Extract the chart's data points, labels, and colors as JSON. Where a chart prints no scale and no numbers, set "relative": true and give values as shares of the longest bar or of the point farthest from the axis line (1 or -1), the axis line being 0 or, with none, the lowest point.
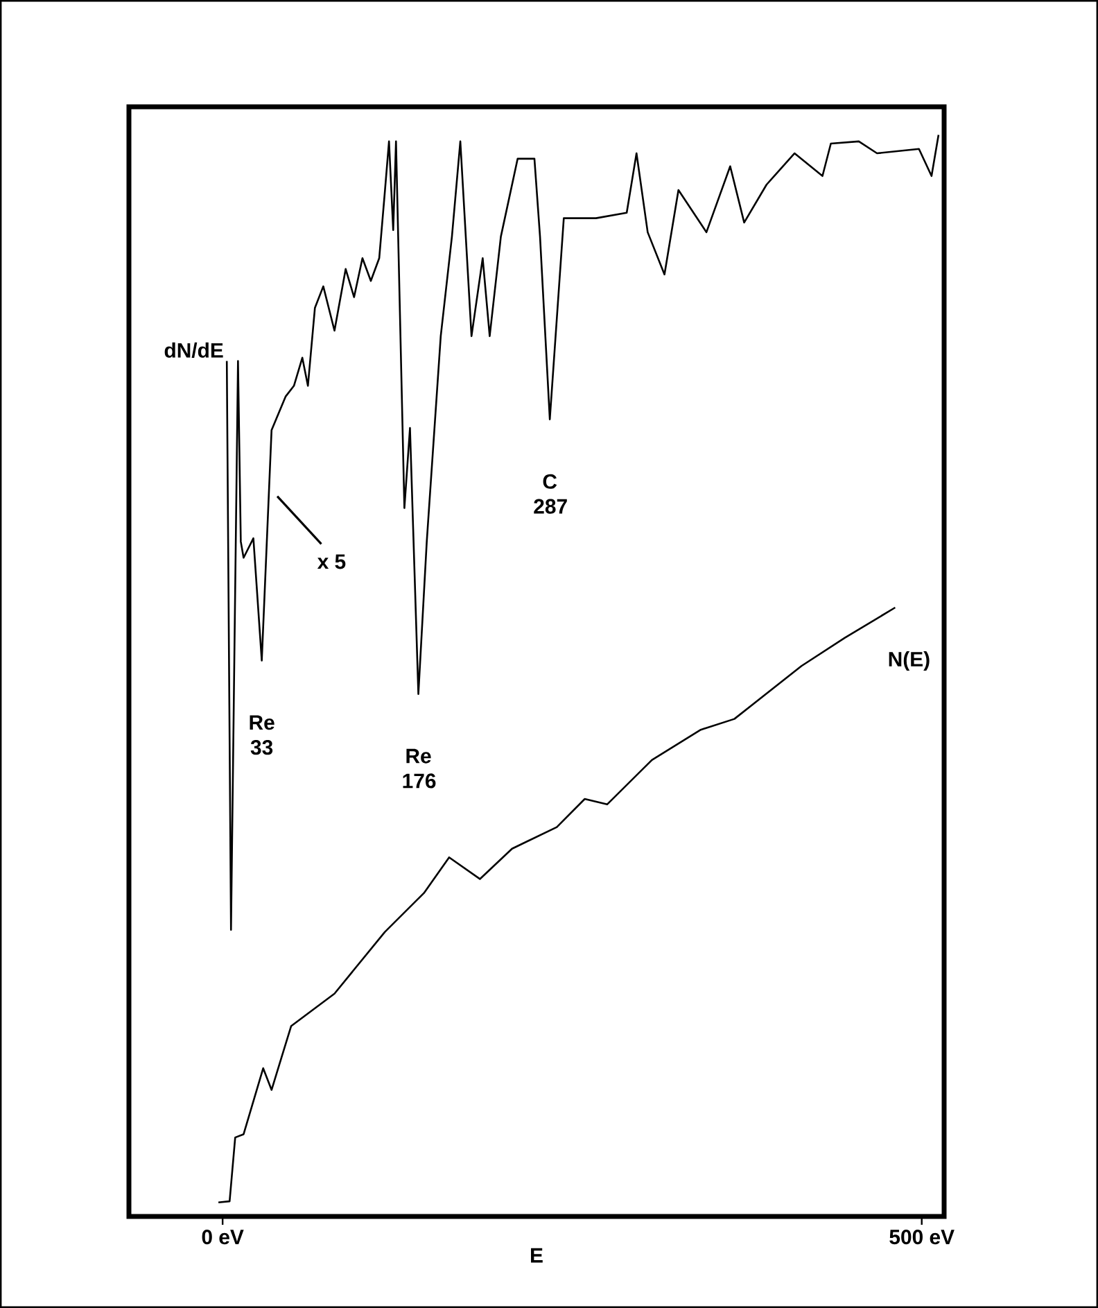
{
  "chart_data": {
    "type": "line",
    "relative": true,
    "xlabel": "E",
    "xlim": [
      -67,
      516
    ],
    "xticks": [
      {
        "value": 0,
        "label": "0 eV"
      },
      {
        "value": 500,
        "label": "500 eV"
      }
    ],
    "series": [
      {
        "name": "dN/dE",
        "color": "#000000",
        "x": [
          3,
          6,
          11,
          13,
          15,
          22,
          28,
          35,
          45,
          51,
          57,
          61,
          66,
          72,
          80,
          88,
          94,
          100,
          106,
          112,
          116,
          119,
          122,
          124,
          126,
          130,
          134,
          140,
          146,
          156,
          164,
          170,
          178,
          186,
          191,
          199,
          211,
          223,
          227,
          234,
          244,
          267,
          289,
          296,
          304,
          316,
          326,
          346,
          363,
          373,
          389,
          409,
          429,
          435,
          455,
          468,
          498,
          507,
          512
        ],
        "values": [
          0.791,
          0.265,
          0.791,
          0.624,
          0.609,
          0.627,
          0.514,
          0.727,
          0.758,
          0.768,
          0.794,
          0.768,
          0.84,
          0.86,
          0.819,
          0.876,
          0.85,
          0.886,
          0.865,
          0.886,
          0.947,
          0.994,
          0.912,
          0.994,
          0.881,
          0.655,
          0.729,
          0.483,
          0.624,
          0.814,
          0.906,
          0.994,
          0.814,
          0.886,
          0.814,
          0.906,
          0.978,
          0.978,
          0.906,
          0.737,
          0.923,
          0.923,
          0.928,
          0.983,
          0.91,
          0.871,
          0.949,
          0.91,
          0.971,
          0.919,
          0.954,
          0.983,
          0.962,
          0.992,
          0.994,
          0.983,
          0.987,
          0.962,
          1
        ]
      },
      {
        "name": "N(E)",
        "color": "#000000",
        "x": [
          -3,
          5,
          9,
          15,
          29,
          35,
          49,
          80,
          116,
          144,
          162,
          184,
          207,
          239,
          259,
          275,
          307,
          342,
          366,
          414,
          445,
          481
        ],
        "values": [
          0.013,
          0.014,
          0.073,
          0.076,
          0.137,
          0.117,
          0.176,
          0.206,
          0.263,
          0.299,
          0.332,
          0.312,
          0.34,
          0.36,
          0.386,
          0.381,
          0.422,
          0.45,
          0.46,
          0.509,
          0.535,
          0.563
        ]
      }
    ],
    "annotations": [
      {
        "text": "Re 33",
        "x": 28,
        "y": 0.514
      },
      {
        "text": "Re 176",
        "x": 140,
        "y": 0.483
      },
      {
        "text": "C 287",
        "x": 234,
        "y": 0.737
      },
      "x 5"
    ],
    "grid": false,
    "line_style": "solid",
    "marker": "none"
  }
}
